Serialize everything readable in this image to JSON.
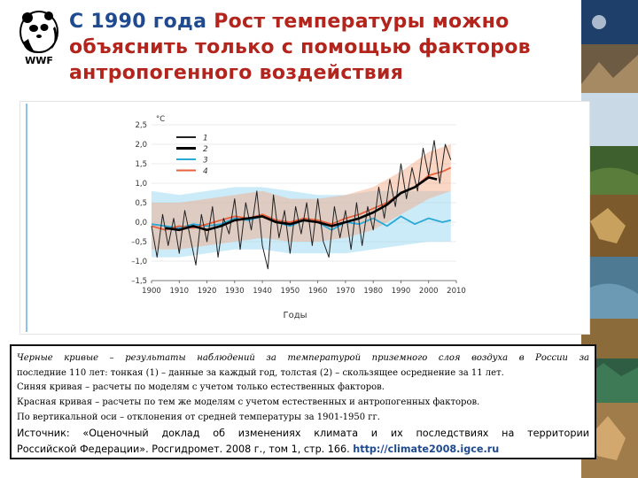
{
  "slide": {
    "logo_text": "WWF",
    "title_part1": "С 1990 года",
    "title_part2": "Рост температуры можно объяснить только с помощью факторов антропогенного воздействия"
  },
  "caption": {
    "line1": "Черные кривые – результаты наблюдений за температурой приземного слоя воздуха в России за",
    "line2": "последние 110 лет: тонкая (1) – данные за каждый год, толстая (2) – скользящее осреднение за 11 лет.",
    "line3": "Синяя кривая – расчеты по моделям с учетом только естественных факторов.",
    "line4": "Красная кривая – расчеты по тем же моделям с учетом естественных и антропогенных факторов.",
    "line5": "По вертикальной оси – отклонения от средней температуры за 1901-1950 гг.",
    "source_line1": "Источник: «Оценочный доклад об изменениях климата и их последствиях на территории",
    "source_line2": "Российской Федерации». Росгидромет. 2008 г., том 1, стр. 166.",
    "source_url": "http://climate2008.igce.ru"
  },
  "chart_data": {
    "type": "line",
    "title": "",
    "ylabel": "°C",
    "xlabel": "Годы",
    "xlim": [
      1900,
      2010
    ],
    "ylim": [
      -1.5,
      2.5
    ],
    "x_ticks": [
      1900,
      1910,
      1920,
      1930,
      1940,
      1950,
      1960,
      1970,
      1980,
      1990,
      2000,
      2010
    ],
    "y_ticks": [
      -1.5,
      -1.0,
      -0.5,
      0.0,
      0.5,
      1.0,
      1.5,
      2.0,
      2.5
    ],
    "y_tick_labels": [
      "–1,5",
      "–1,0",
      "–0,5",
      "0,0",
      "0,5",
      "1,0",
      "1,5",
      "2,0",
      "2,5"
    ],
    "x_tick_labels": [
      "1900",
      "1910",
      "1920",
      "1930",
      "1940",
      "1950",
      "1960",
      "1970",
      "1980",
      "1990",
      "2000",
      "2010"
    ],
    "legend_position": "top-left",
    "series": [
      {
        "name": "1",
        "color": "#222222",
        "style": "thin",
        "x": [
          1900,
          1902,
          1904,
          1906,
          1908,
          1910,
          1912,
          1914,
          1916,
          1918,
          1920,
          1922,
          1924,
          1926,
          1928,
          1930,
          1932,
          1934,
          1936,
          1938,
          1940,
          1942,
          1944,
          1946,
          1948,
          1950,
          1952,
          1954,
          1956,
          1958,
          1960,
          1962,
          1964,
          1966,
          1968,
          1970,
          1972,
          1974,
          1976,
          1978,
          1980,
          1982,
          1984,
          1986,
          1988,
          1990,
          1992,
          1994,
          1996,
          1998,
          2000,
          2002,
          2004,
          2006,
          2008
        ],
        "values": [
          -0.1,
          -0.9,
          0.2,
          -0.6,
          0.1,
          -0.8,
          0.3,
          -0.4,
          -1.1,
          0.2,
          -0.5,
          0.4,
          -0.9,
          0.1,
          -0.3,
          0.6,
          -0.7,
          0.5,
          -0.2,
          0.8,
          -0.6,
          -1.2,
          0.7,
          -0.4,
          0.3,
          -0.8,
          0.4,
          -0.3,
          0.5,
          -0.6,
          0.6,
          -0.5,
          -0.9,
          0.4,
          -0.4,
          0.3,
          -0.7,
          0.5,
          -0.6,
          0.4,
          -0.2,
          0.9,
          0.1,
          1.1,
          0.4,
          1.5,
          0.6,
          1.4,
          0.8,
          1.9,
          1.2,
          2.1,
          1.0,
          2.0,
          1.6
        ]
      },
      {
        "name": "2",
        "color": "#000000",
        "style": "thick",
        "x": [
          1905,
          1910,
          1915,
          1920,
          1925,
          1930,
          1935,
          1940,
          1945,
          1950,
          1955,
          1960,
          1965,
          1970,
          1975,
          1980,
          1985,
          1990,
          1995,
          2000,
          2003
        ],
        "values": [
          -0.15,
          -0.2,
          -0.1,
          -0.2,
          -0.1,
          0.05,
          0.1,
          0.15,
          0.0,
          -0.05,
          0.05,
          0.0,
          -0.1,
          0.0,
          0.1,
          0.25,
          0.45,
          0.75,
          0.9,
          1.15,
          1.1
        ]
      },
      {
        "name": "3",
        "color": "#2aa9d9",
        "style": "thin",
        "x": [
          1900,
          1905,
          1910,
          1915,
          1920,
          1925,
          1930,
          1935,
          1940,
          1945,
          1950,
          1955,
          1960,
          1965,
          1970,
          1975,
          1980,
          1985,
          1990,
          1995,
          2000,
          2005,
          2008
        ],
        "values": [
          -0.05,
          -0.1,
          -0.15,
          -0.05,
          -0.1,
          -0.05,
          0.1,
          0.05,
          0.15,
          0.0,
          -0.1,
          0.05,
          0.0,
          -0.2,
          0.0,
          -0.05,
          0.1,
          -0.1,
          0.15,
          -0.05,
          0.1,
          0.0,
          0.05
        ]
      },
      {
        "name": "4",
        "color": "#e8603c",
        "style": "thin",
        "x": [
          1900,
          1905,
          1910,
          1915,
          1920,
          1925,
          1930,
          1935,
          1940,
          1945,
          1950,
          1955,
          1960,
          1965,
          1970,
          1975,
          1980,
          1985,
          1990,
          1995,
          2000,
          2005,
          2008
        ],
        "values": [
          -0.1,
          -0.2,
          -0.1,
          -0.15,
          -0.05,
          0.05,
          0.15,
          0.1,
          0.2,
          0.05,
          0.0,
          0.1,
          0.05,
          -0.05,
          0.1,
          0.2,
          0.35,
          0.5,
          0.75,
          0.9,
          1.2,
          1.3,
          1.4
        ]
      }
    ],
    "bands": [
      {
        "name": "3",
        "color": "#8fd3ef",
        "x": [
          1900,
          1910,
          1920,
          1930,
          1940,
          1950,
          1960,
          1970,
          1980,
          1990,
          2000,
          2008
        ],
        "lower": [
          -0.9,
          -0.9,
          -0.8,
          -0.7,
          -0.7,
          -0.8,
          -0.8,
          -0.8,
          -0.7,
          -0.6,
          -0.5,
          -0.5
        ],
        "upper": [
          0.8,
          0.7,
          0.8,
          0.9,
          0.9,
          0.8,
          0.7,
          0.7,
          0.8,
          0.8,
          0.8,
          0.8
        ]
      },
      {
        "name": "4",
        "color": "#f4a37e",
        "x": [
          1900,
          1910,
          1920,
          1930,
          1940,
          1950,
          1960,
          1970,
          1980,
          1990,
          2000,
          2008
        ],
        "lower": [
          -0.7,
          -0.7,
          -0.6,
          -0.5,
          -0.4,
          -0.5,
          -0.5,
          -0.4,
          -0.2,
          0.2,
          0.6,
          0.8
        ],
        "upper": [
          0.5,
          0.5,
          0.6,
          0.7,
          0.8,
          0.6,
          0.6,
          0.7,
          0.9,
          1.3,
          1.8,
          2.0
        ]
      }
    ]
  }
}
